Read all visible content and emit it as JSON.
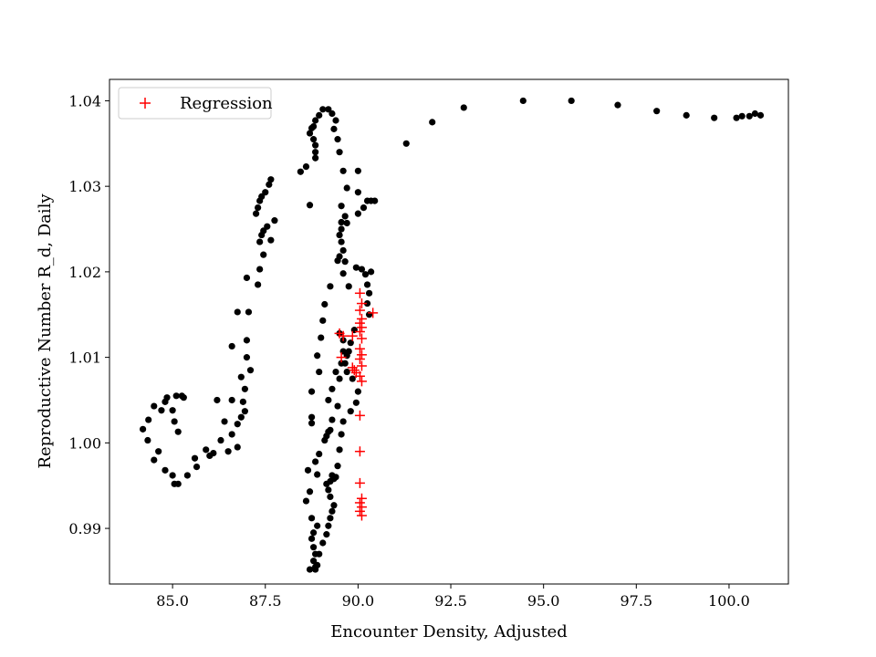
{
  "chart_data": {
    "type": "scatter",
    "title": "",
    "xlabel": "Encounter Density, Adjusted",
    "ylabel": "Reproductive Number R_d, Daily",
    "xlim": [
      83.3,
      101.6
    ],
    "ylim": [
      0.9835,
      1.0425
    ],
    "xticks": [
      85.0,
      87.5,
      90.0,
      92.5,
      95.0,
      97.5,
      100.0
    ],
    "xtick_labels": [
      "85.0",
      "87.5",
      "90.0",
      "92.5",
      "95.0",
      "97.5",
      "100.0"
    ],
    "yticks": [
      0.99,
      1.0,
      1.01,
      1.02,
      1.03,
      1.04
    ],
    "ytick_labels": [
      "0.99",
      "1.00",
      "1.01",
      "1.02",
      "1.03",
      "1.04"
    ],
    "grid": false,
    "legend": {
      "position": "top-left",
      "entries": [
        "Regression"
      ]
    },
    "series": [
      {
        "marker": "circle",
        "color": "#000000",
        "points": [
          [
            84.2,
            1.0016
          ],
          [
            84.35,
            1.0027
          ],
          [
            84.33,
            1.0003
          ],
          [
            84.5,
            0.998
          ],
          [
            84.62,
            0.999
          ],
          [
            84.5,
            1.0043
          ],
          [
            84.7,
            1.0038
          ],
          [
            84.8,
            1.0048
          ],
          [
            84.85,
            1.0053
          ],
          [
            85.1,
            1.0055
          ],
          [
            85.25,
            1.0055
          ],
          [
            85.3,
            1.0053
          ],
          [
            85.0,
            1.0038
          ],
          [
            85.05,
            1.0025
          ],
          [
            85.15,
            1.0013
          ],
          [
            84.8,
            0.9968
          ],
          [
            85.0,
            0.9962
          ],
          [
            85.05,
            0.9952
          ],
          [
            85.15,
            0.9952
          ],
          [
            85.4,
            0.9962
          ],
          [
            85.65,
            0.9972
          ],
          [
            85.6,
            0.9982
          ],
          [
            85.9,
            0.9992
          ],
          [
            86.0,
            0.9985
          ],
          [
            86.1,
            0.9988
          ],
          [
            86.3,
            1.0003
          ],
          [
            86.4,
            1.0025
          ],
          [
            86.5,
            0.999
          ],
          [
            86.6,
            1.001
          ],
          [
            86.75,
            0.9995
          ],
          [
            86.75,
            1.0022
          ],
          [
            86.85,
            1.003
          ],
          [
            86.95,
            1.0037
          ],
          [
            86.9,
            1.0048
          ],
          [
            86.95,
            1.0063
          ],
          [
            86.85,
            1.0077
          ],
          [
            87.1,
            1.0085
          ],
          [
            87.0,
            1.01
          ],
          [
            87.0,
            1.012
          ],
          [
            87.05,
            1.0153
          ],
          [
            87.0,
            1.0193
          ],
          [
            86.6,
            1.0113
          ],
          [
            86.6,
            1.005
          ],
          [
            86.75,
            1.0153
          ],
          [
            86.2,
            1.005
          ],
          [
            87.3,
            1.0185
          ],
          [
            87.35,
            1.0203
          ],
          [
            87.45,
            1.022
          ],
          [
            87.35,
            1.0235
          ],
          [
            87.4,
            1.0243
          ],
          [
            87.45,
            1.0248
          ],
          [
            87.55,
            1.0253
          ],
          [
            87.65,
            1.0237
          ],
          [
            87.75,
            1.026
          ],
          [
            87.25,
            1.0268
          ],
          [
            87.3,
            1.0275
          ],
          [
            87.35,
            1.0283
          ],
          [
            87.4,
            1.0288
          ],
          [
            87.5,
            1.0293
          ],
          [
            87.6,
            1.0302
          ],
          [
            87.65,
            1.0308
          ],
          [
            88.45,
            1.0317
          ],
          [
            88.6,
            1.0323
          ],
          [
            88.75,
            1.0368
          ],
          [
            88.7,
            1.0362
          ],
          [
            88.8,
            1.037
          ],
          [
            88.85,
            1.0377
          ],
          [
            88.95,
            1.0383
          ],
          [
            89.05,
            1.039
          ],
          [
            89.2,
            1.039
          ],
          [
            89.3,
            1.0385
          ],
          [
            89.4,
            1.0377
          ],
          [
            88.8,
            1.0355
          ],
          [
            88.85,
            1.0348
          ],
          [
            88.85,
            1.034
          ],
          [
            88.85,
            1.0333
          ],
          [
            88.7,
            1.0278
          ],
          [
            88.75,
            1.0023
          ],
          [
            88.65,
            0.9968
          ],
          [
            88.7,
            0.9943
          ],
          [
            88.6,
            0.9932
          ],
          [
            88.75,
            0.9912
          ],
          [
            88.8,
            0.9895
          ],
          [
            88.9,
            0.9903
          ],
          [
            88.75,
            0.9888
          ],
          [
            88.8,
            0.9878
          ],
          [
            88.85,
            0.987
          ],
          [
            88.8,
            0.9862
          ],
          [
            88.85,
            0.9855
          ],
          [
            88.7,
            0.9852
          ],
          [
            88.85,
            0.9852
          ],
          [
            88.9,
            0.9857
          ],
          [
            88.95,
            0.987
          ],
          [
            89.05,
            0.9883
          ],
          [
            89.15,
            0.9893
          ],
          [
            89.2,
            0.9903
          ],
          [
            89.25,
            0.9912
          ],
          [
            89.3,
            0.992
          ],
          [
            89.35,
            0.9927
          ],
          [
            89.25,
            0.9937
          ],
          [
            89.2,
            0.9945
          ],
          [
            89.15,
            0.9952
          ],
          [
            89.25,
            0.9955
          ],
          [
            89.35,
            0.9958
          ],
          [
            89.3,
            0.9962
          ],
          [
            89.4,
            0.996
          ],
          [
            89.45,
            0.9973
          ],
          [
            89.5,
            0.9992
          ],
          [
            89.55,
            1.001
          ],
          [
            89.6,
            1.0025
          ],
          [
            89.8,
            1.0037
          ],
          [
            89.95,
            1.0047
          ],
          [
            90.0,
            1.006
          ],
          [
            89.85,
            1.0075
          ],
          [
            89.7,
            1.0083
          ],
          [
            89.65,
            1.0093
          ],
          [
            89.7,
            1.0102
          ],
          [
            89.75,
            1.0107
          ],
          [
            89.8,
            1.0117
          ],
          [
            89.9,
            1.0132
          ],
          [
            89.6,
            1.012
          ],
          [
            89.6,
            1.0107
          ],
          [
            89.55,
            1.0093
          ],
          [
            89.5,
            1.0075
          ],
          [
            89.4,
            1.0083
          ],
          [
            89.3,
            1.0063
          ],
          [
            89.45,
            1.0043
          ],
          [
            89.2,
            1.005
          ],
          [
            89.3,
            1.0027
          ],
          [
            89.25,
            1.0015
          ],
          [
            89.2,
            1.0013
          ],
          [
            89.15,
            1.0008
          ],
          [
            89.1,
            1.0003
          ],
          [
            88.95,
            0.9987
          ],
          [
            88.85,
            0.9978
          ],
          [
            88.9,
            0.9963
          ],
          [
            88.75,
            1.003
          ],
          [
            88.75,
            1.006
          ],
          [
            88.95,
            1.0083
          ],
          [
            88.9,
            1.0102
          ],
          [
            89.0,
            1.0123
          ],
          [
            89.05,
            1.0143
          ],
          [
            89.1,
            1.0162
          ],
          [
            89.25,
            1.0183
          ],
          [
            89.5,
            1.0128
          ],
          [
            89.5,
            1.0218
          ],
          [
            89.45,
            1.0213
          ],
          [
            89.6,
            1.0198
          ],
          [
            89.75,
            1.0183
          ],
          [
            89.95,
            1.0205
          ],
          [
            90.1,
            1.0203
          ],
          [
            90.2,
            1.0197
          ],
          [
            90.25,
            1.0185
          ],
          [
            90.3,
            1.0175
          ],
          [
            90.25,
            1.0163
          ],
          [
            90.3,
            1.015
          ],
          [
            90.35,
            1.02
          ],
          [
            89.65,
            1.0212
          ],
          [
            89.6,
            1.0225
          ],
          [
            89.55,
            1.0235
          ],
          [
            89.5,
            1.0243
          ],
          [
            89.55,
            1.025
          ],
          [
            89.55,
            1.0258
          ],
          [
            89.7,
            1.0257
          ],
          [
            89.65,
            1.0265
          ],
          [
            89.55,
            1.0277
          ],
          [
            89.7,
            1.0298
          ],
          [
            89.6,
            1.0318
          ],
          [
            89.5,
            1.034
          ],
          [
            89.45,
            1.0355
          ],
          [
            89.35,
            1.0367
          ],
          [
            90.0,
            1.0318
          ],
          [
            90.0,
            1.0293
          ],
          [
            90.0,
            1.0268
          ],
          [
            90.15,
            1.0275
          ],
          [
            90.25,
            1.0283
          ],
          [
            90.35,
            1.0283
          ],
          [
            90.45,
            1.0283
          ],
          [
            91.3,
            1.035
          ],
          [
            92.0,
            1.0375
          ],
          [
            92.85,
            1.0392
          ],
          [
            94.45,
            1.04
          ],
          [
            95.75,
            1.04
          ],
          [
            97.0,
            1.0395
          ],
          [
            98.05,
            1.0388
          ],
          [
            98.85,
            1.0383
          ],
          [
            99.6,
            1.038
          ],
          [
            100.2,
            1.038
          ],
          [
            100.35,
            1.0382
          ],
          [
            100.55,
            1.0382
          ],
          [
            100.7,
            1.0385
          ],
          [
            100.85,
            1.0383
          ]
        ]
      },
      {
        "name": "Regression",
        "marker": "plus",
        "color": "#ff0000",
        "points": [
          [
            90.05,
            1.0175
          ],
          [
            90.1,
            1.0163
          ],
          [
            90.05,
            1.0155
          ],
          [
            90.4,
            1.0152
          ],
          [
            90.1,
            1.0145
          ],
          [
            90.05,
            1.014
          ],
          [
            90.1,
            1.0135
          ],
          [
            90.05,
            1.013
          ],
          [
            89.5,
            1.0128
          ],
          [
            89.6,
            1.0125
          ],
          [
            89.85,
            1.0125
          ],
          [
            90.1,
            1.0122
          ],
          [
            90.05,
            1.011
          ],
          [
            90.1,
            1.0103
          ],
          [
            90.05,
            1.0098
          ],
          [
            89.55,
            1.01
          ],
          [
            90.1,
            1.009
          ],
          [
            89.9,
            1.0085
          ],
          [
            89.95,
            1.0082
          ],
          [
            89.85,
            1.0088
          ],
          [
            90.05,
            1.0078
          ],
          [
            90.1,
            1.0072
          ],
          [
            90.05,
            1.0032
          ],
          [
            90.05,
            0.999
          ],
          [
            90.05,
            0.9953
          ],
          [
            90.1,
            0.9935
          ],
          [
            90.05,
            0.993
          ],
          [
            90.1,
            0.9925
          ],
          [
            90.05,
            0.992
          ],
          [
            90.1,
            0.9915
          ]
        ]
      }
    ]
  }
}
